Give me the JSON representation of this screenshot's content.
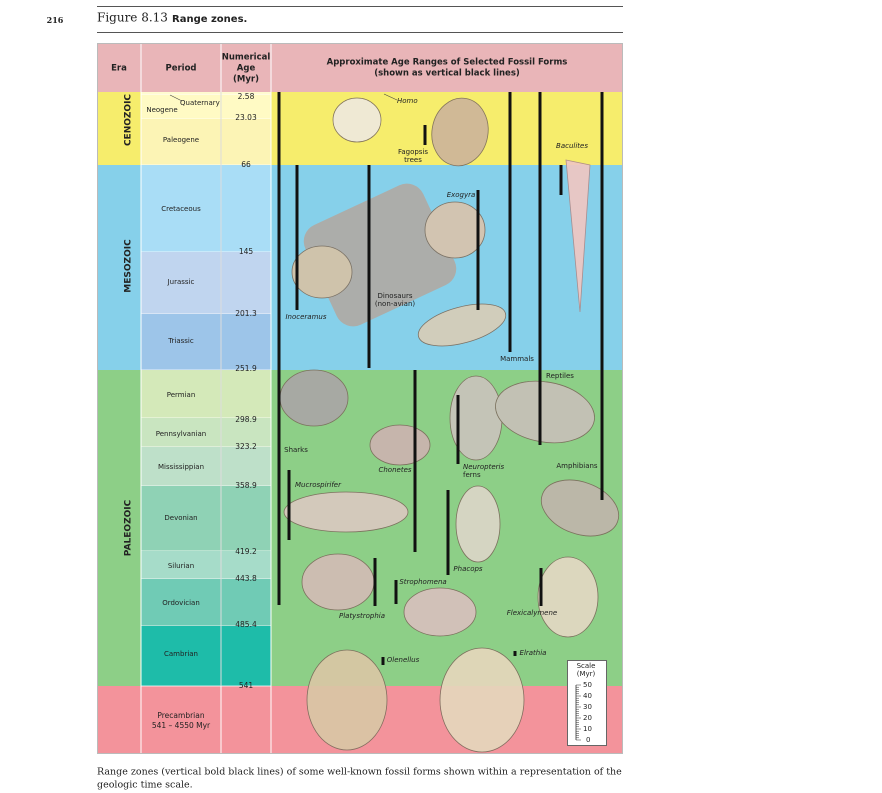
{
  "page_number": "216",
  "figure": {
    "label": "Figure 8.13",
    "title": "Range zones."
  },
  "table": {
    "headers": [
      [
        "Era"
      ],
      [
        "Period"
      ],
      [
        "Numerical",
        "Age",
        "(Myr)"
      ],
      [
        "Approximate Age Ranges of Selected Fossil Forms",
        "(shown as vertical black lines)"
      ]
    ],
    "eras": [
      "CENOZOIC",
      "MESOZOIC",
      "PALEOZOIC"
    ],
    "precambrian": [
      "Precambrian",
      "541 – 4550 Myr"
    ],
    "periods": [
      "Quaternary",
      "Neogene",
      "Paleogene",
      "Cretaceous",
      "Jurassic",
      "Triassic",
      "Permian",
      "Pennsylvanian",
      "Mississippian",
      "Devonian",
      "Silurian",
      "Ordovician",
      "Cambrian"
    ],
    "ages": [
      "2.58",
      "23.03",
      "66",
      "145",
      "201.3",
      "251.9",
      "298.9",
      "323.2",
      "358.9",
      "419.2",
      "443.8",
      "485.4",
      "541"
    ],
    "fossils": [
      [
        "Homo"
      ],
      [
        "Fagopsis",
        "trees"
      ],
      [
        "Baculites"
      ],
      [
        "Exogyra"
      ],
      [
        "Dinosaurs",
        "(non-avian)"
      ],
      [
        "Inoceramus"
      ],
      [
        "Mammals"
      ],
      [
        "Reptiles"
      ],
      [
        "Sharks"
      ],
      [
        "Chonetes"
      ],
      [
        "Neuropteris",
        "ferns"
      ],
      [
        "Amphibians"
      ],
      [
        "Mucrospirifer"
      ],
      [
        "Phacops"
      ],
      [
        "Strophomena"
      ],
      [
        "Platystrophia"
      ],
      [
        "Flexicalymene"
      ],
      [
        "Elrathia"
      ],
      [
        "Olenellus"
      ]
    ],
    "scale": {
      "title": [
        "Scale",
        "(Myr)"
      ],
      "ticks": [
        "50",
        "40",
        "30",
        "20",
        "10",
        "0"
      ]
    }
  },
  "caption": [
    "Range zones (vertical bold black lines) of some well-known fossil forms shown within a representation of the",
    "geologic time scale."
  ]
}
